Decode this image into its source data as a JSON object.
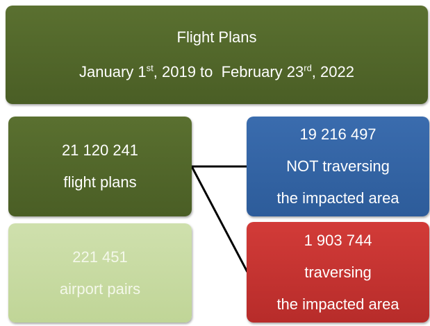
{
  "header": {
    "title": "Flight Plans",
    "subtitle_parts": [
      "January 1",
      "st",
      ", 2019 to  February 23",
      "rd",
      ", 2022"
    ]
  },
  "nodes": [
    {
      "lines": [
        "21 120 241",
        "flight plans"
      ]
    },
    {
      "lines": [
        "221 451",
        "airport pairs"
      ]
    },
    {
      "lines": [
        "19 216 497",
        "NOT traversing",
        "the impacted area"
      ]
    },
    {
      "lines": [
        "1 903 744",
        "traversing",
        "the impacted area"
      ]
    }
  ]
}
